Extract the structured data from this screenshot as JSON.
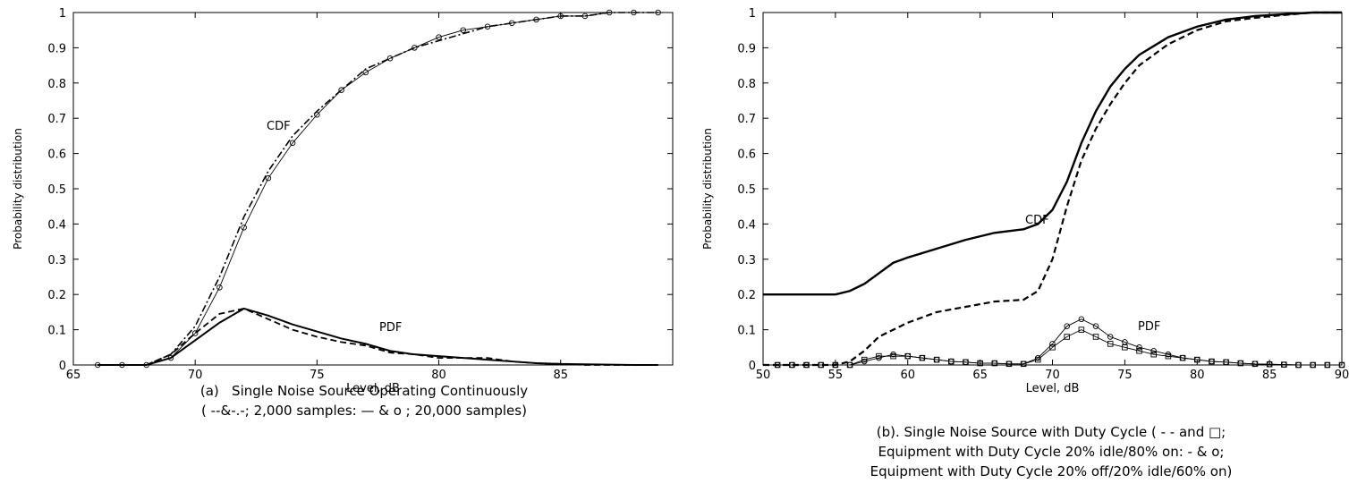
{
  "chart_data": [
    {
      "type": "line",
      "xlabel": "Level, dB",
      "ylabel": "Probability distribution",
      "xlim": [
        65,
        89.6
      ],
      "ylim": [
        0,
        1
      ],
      "xticks": [
        65,
        70,
        75,
        80,
        85
      ],
      "yticks": [
        0,
        0.1,
        0.2,
        0.3,
        0.4,
        0.5,
        0.6,
        0.7,
        0.8,
        0.9,
        1
      ],
      "annotations": [
        "CDF",
        "PDF"
      ],
      "caption": [
        "(a)   Single Noise Source Operating Continuously",
        "( --&-.-; 2,000 samples: — & o ; 20,000 samples)"
      ],
      "series": [
        {
          "color": "#000000",
          "style": "-.",
          "linewidth": 1.6,
          "marker": null,
          "x": [
            66,
            67,
            68,
            69,
            70,
            71,
            72,
            73,
            74,
            75,
            76,
            77,
            78,
            79,
            80,
            81,
            82,
            83,
            84,
            85,
            86,
            87,
            88,
            89
          ],
          "values": [
            0,
            0,
            0,
            0.03,
            0.11,
            0.25,
            0.42,
            0.55,
            0.65,
            0.72,
            0.78,
            0.84,
            0.87,
            0.9,
            0.92,
            0.94,
            0.96,
            0.97,
            0.98,
            0.99,
            0.99,
            1,
            1,
            1
          ]
        },
        {
          "color": "#000000",
          "style": "-",
          "linewidth": 0.9,
          "marker": "o",
          "x": [
            66,
            67,
            68,
            69,
            70,
            71,
            72,
            73,
            74,
            75,
            76,
            77,
            78,
            79,
            80,
            81,
            82,
            83,
            84,
            85,
            86,
            87,
            88,
            89
          ],
          "values": [
            0,
            0,
            0,
            0.02,
            0.09,
            0.22,
            0.39,
            0.53,
            0.63,
            0.71,
            0.78,
            0.83,
            0.87,
            0.9,
            0.93,
            0.95,
            0.96,
            0.97,
            0.98,
            0.99,
            0.99,
            1,
            1,
            1
          ]
        },
        {
          "color": "#000000",
          "style": "--",
          "linewidth": 1.8,
          "marker": null,
          "x": [
            66,
            67,
            68,
            69,
            70,
            71,
            72,
            73,
            74,
            75,
            76,
            77,
            78,
            79,
            80,
            81,
            82,
            83,
            84,
            85,
            86,
            87,
            88,
            89
          ],
          "values": [
            0,
            0,
            0,
            0.03,
            0.09,
            0.145,
            0.16,
            0.13,
            0.1,
            0.08,
            0.065,
            0.055,
            0.035,
            0.03,
            0.02,
            0.02,
            0.02,
            0.01,
            0.005,
            0.003,
            0,
            0,
            0,
            0
          ]
        },
        {
          "color": "#000000",
          "style": "-",
          "linewidth": 2,
          "marker": null,
          "x": [
            66,
            67,
            68,
            69,
            70,
            71,
            72,
            73,
            74,
            75,
            76,
            77,
            78,
            79,
            80,
            81,
            82,
            83,
            84,
            85,
            86,
            87,
            88,
            89
          ],
          "values": [
            0,
            0,
            0,
            0.02,
            0.07,
            0.12,
            0.16,
            0.14,
            0.115,
            0.095,
            0.075,
            0.06,
            0.04,
            0.03,
            0.025,
            0.02,
            0.015,
            0.01,
            0.005,
            0.003,
            0.002,
            0.001,
            0,
            0
          ]
        }
      ]
    },
    {
      "type": "line",
      "xlabel": "Level, dB",
      "ylabel": "Probability distribution",
      "xlim": [
        50,
        90
      ],
      "ylim": [
        0,
        1
      ],
      "xticks": [
        50,
        55,
        60,
        65,
        70,
        75,
        80,
        85,
        90
      ],
      "yticks": [
        0,
        0.1,
        0.2,
        0.3,
        0.4,
        0.5,
        0.6,
        0.7,
        0.8,
        0.9,
        1
      ],
      "annotations": [
        "CDF",
        "PDF"
      ],
      "caption": [
        "(b). Single Noise Source with Duty Cycle ( - - and □;",
        "Equipment with Duty Cycle 20% idle/80% on: - & o;",
        "Equipment with Duty Cycle 20% off/20% idle/60% on)"
      ],
      "series": [
        {
          "color": "#000000",
          "style": "-",
          "linewidth": 2.4,
          "marker": null,
          "x": [
            50,
            55,
            56,
            57,
            58,
            59,
            60,
            62,
            64,
            66,
            68,
            69,
            70,
            71,
            72,
            73,
            74,
            75,
            76,
            77,
            78,
            80,
            82,
            84,
            86,
            88,
            90
          ],
          "values": [
            0.2,
            0.2,
            0.21,
            0.23,
            0.26,
            0.29,
            0.305,
            0.33,
            0.355,
            0.375,
            0.385,
            0.4,
            0.44,
            0.52,
            0.63,
            0.72,
            0.79,
            0.84,
            0.88,
            0.905,
            0.93,
            0.96,
            0.98,
            0.99,
            0.995,
            1,
            1
          ]
        },
        {
          "color": "#000000",
          "style": "--",
          "linewidth": 2.2,
          "marker": null,
          "x": [
            50,
            55,
            56,
            57,
            58,
            59,
            60,
            62,
            64,
            66,
            68,
            69,
            70,
            71,
            72,
            73,
            74,
            75,
            76,
            77,
            78,
            80,
            82,
            84,
            86,
            88,
            90
          ],
          "values": [
            0,
            0,
            0.01,
            0.04,
            0.08,
            0.1,
            0.12,
            0.15,
            0.165,
            0.18,
            0.185,
            0.21,
            0.3,
            0.45,
            0.58,
            0.67,
            0.74,
            0.8,
            0.85,
            0.88,
            0.91,
            0.95,
            0.975,
            0.985,
            0.993,
            1,
            1
          ]
        },
        {
          "color": "#000000",
          "style": "-",
          "linewidth": 0.9,
          "marker": "o",
          "x": [
            51,
            52,
            53,
            54,
            55,
            56,
            57,
            58,
            59,
            60,
            61,
            62,
            63,
            64,
            65,
            66,
            67,
            68,
            69,
            70,
            71,
            72,
            73,
            74,
            75,
            76,
            77,
            78,
            79,
            80,
            81,
            82,
            83,
            84,
            85,
            86,
            87,
            88,
            89,
            90
          ],
          "values": [
            0,
            0,
            0,
            0,
            0,
            0,
            0.01,
            0.02,
            0.03,
            0.025,
            0.02,
            0.015,
            0.01,
            0.008,
            0.005,
            0.005,
            0.003,
            0.003,
            0.02,
            0.06,
            0.11,
            0.13,
            0.11,
            0.08,
            0.065,
            0.05,
            0.04,
            0.03,
            0.02,
            0.015,
            0.01,
            0.008,
            0.005,
            0.003,
            0.002,
            0.001,
            0,
            0,
            0,
            0
          ]
        },
        {
          "color": "#000000",
          "style": "-",
          "linewidth": 0.9,
          "marker": "s",
          "x": [
            51,
            52,
            53,
            54,
            55,
            56,
            57,
            58,
            59,
            60,
            61,
            62,
            63,
            64,
            65,
            66,
            67,
            68,
            69,
            70,
            71,
            72,
            73,
            74,
            75,
            76,
            77,
            78,
            79,
            80,
            81,
            82,
            83,
            84,
            85,
            86,
            87,
            88,
            89,
            90
          ],
          "values": [
            0,
            0,
            0,
            0,
            0,
            0,
            0.015,
            0.025,
            0.025,
            0.025,
            0.02,
            0.015,
            0.01,
            0.008,
            0.005,
            0.005,
            0.003,
            0.003,
            0.015,
            0.05,
            0.08,
            0.1,
            0.08,
            0.06,
            0.05,
            0.04,
            0.03,
            0.025,
            0.02,
            0.015,
            0.01,
            0.008,
            0.005,
            0.003,
            0.002,
            0.001,
            0,
            0,
            0,
            0
          ]
        }
      ]
    }
  ]
}
